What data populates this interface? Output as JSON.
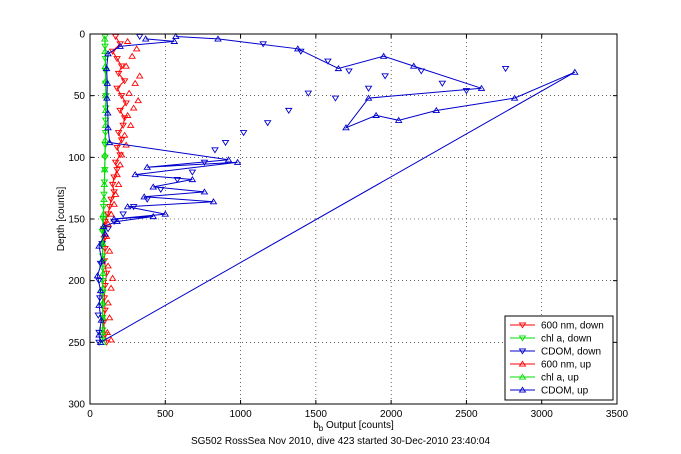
{
  "caption": "SG502 RossSea Nov 2010, dive 423 started 30-Dec-2010 23:40:04",
  "chart_data": {
    "type": "scatter",
    "title": "",
    "xlabel": "b",
    "xlabel_sub": "b",
    "xlabel_rest": " Output [counts]",
    "ylabel": "Depth [counts]",
    "xlim": [
      0,
      3500
    ],
    "ylim": [
      0,
      300
    ],
    "y_reversed": true,
    "grid": true,
    "legend_position": "bottom-right",
    "xticks": [
      0,
      500,
      1000,
      1500,
      2000,
      2500,
      3000,
      3500
    ],
    "yticks": [
      0,
      50,
      100,
      150,
      200,
      250,
      300
    ],
    "series": [
      {
        "name": "600 nm, down",
        "color": "#ff0000",
        "marker": "tri-down",
        "line": true,
        "points": [
          [
            170,
            2
          ],
          [
            200,
            8
          ],
          [
            150,
            14
          ],
          [
            180,
            20
          ],
          [
            210,
            26
          ],
          [
            190,
            32
          ],
          [
            230,
            38
          ],
          [
            180,
            44
          ],
          [
            210,
            50
          ],
          [
            240,
            56
          ],
          [
            200,
            62
          ],
          [
            230,
            68
          ],
          [
            220,
            74
          ],
          [
            190,
            80
          ],
          [
            210,
            86
          ],
          [
            180,
            92
          ],
          [
            200,
            98
          ],
          [
            170,
            104
          ],
          [
            180,
            110
          ],
          [
            160,
            116
          ],
          [
            150,
            122
          ],
          [
            160,
            128
          ],
          [
            140,
            134
          ],
          [
            130,
            140
          ],
          [
            120,
            146
          ],
          [
            100,
            152
          ],
          [
            90,
            158
          ],
          [
            95,
            166
          ],
          [
            100,
            174
          ],
          [
            95,
            184
          ],
          [
            110,
            194
          ],
          [
            100,
            204
          ],
          [
            95,
            214
          ],
          [
            100,
            224
          ],
          [
            90,
            234
          ],
          [
            100,
            244
          ],
          [
            110,
            250
          ]
        ]
      },
      {
        "name": "chl a, down",
        "color": "#00dd00",
        "marker": "tri-down",
        "line": true,
        "points": [
          [
            100,
            2
          ],
          [
            100,
            10
          ],
          [
            102,
            20
          ],
          [
            104,
            30
          ],
          [
            104,
            40
          ],
          [
            106,
            50
          ],
          [
            105,
            60
          ],
          [
            104,
            70
          ],
          [
            103,
            80
          ],
          [
            102,
            90
          ],
          [
            100,
            100
          ],
          [
            98,
            110
          ],
          [
            96,
            120
          ],
          [
            93,
            130
          ],
          [
            90,
            140
          ],
          [
            86,
            150
          ],
          [
            82,
            160
          ],
          [
            82,
            170
          ],
          [
            84,
            180
          ],
          [
            85,
            190
          ],
          [
            84,
            200
          ],
          [
            84,
            210
          ],
          [
            83,
            220
          ],
          [
            84,
            230
          ],
          [
            84,
            240
          ],
          [
            84,
            248
          ]
        ]
      },
      {
        "name": "CDOM, down",
        "color": "#0000cc",
        "marker": "tri-down",
        "line": false,
        "points": [
          [
            330,
            2
          ],
          [
            1150,
            8
          ],
          [
            1400,
            14
          ],
          [
            1580,
            22
          ],
          [
            1720,
            30
          ],
          [
            1960,
            34
          ],
          [
            2200,
            30
          ],
          [
            2340,
            40
          ],
          [
            2500,
            46
          ],
          [
            2760,
            28
          ],
          [
            1850,
            44
          ],
          [
            1630,
            52
          ],
          [
            1450,
            48
          ],
          [
            1320,
            62
          ],
          [
            1180,
            72
          ],
          [
            1020,
            80
          ],
          [
            900,
            88
          ],
          [
            830,
            94
          ],
          [
            760,
            104
          ],
          [
            680,
            112
          ],
          [
            580,
            118
          ],
          [
            470,
            126
          ],
          [
            380,
            134
          ],
          [
            290,
            140
          ],
          [
            220,
            146
          ],
          [
            160,
            152
          ],
          [
            120,
            158
          ],
          [
            80,
            170
          ],
          [
            70,
            186
          ],
          [
            60,
            200
          ],
          [
            65,
            214
          ],
          [
            55,
            228
          ],
          [
            60,
            242
          ],
          [
            60,
            250
          ]
        ]
      },
      {
        "name": "600 nm, up",
        "color": "#ff0000",
        "marker": "tri-up",
        "line": false,
        "points": [
          [
            250,
            6
          ],
          [
            310,
            12
          ],
          [
            280,
            18
          ],
          [
            240,
            26
          ],
          [
            330,
            34
          ],
          [
            300,
            40
          ],
          [
            260,
            48
          ],
          [
            320,
            54
          ],
          [
            290,
            60
          ],
          [
            250,
            66
          ],
          [
            270,
            74
          ],
          [
            230,
            82
          ],
          [
            240,
            90
          ],
          [
            210,
            98
          ],
          [
            200,
            106
          ],
          [
            180,
            114
          ],
          [
            190,
            122
          ],
          [
            170,
            130
          ],
          [
            160,
            138
          ],
          [
            140,
            146
          ],
          [
            120,
            154
          ],
          [
            110,
            164
          ],
          [
            130,
            176
          ],
          [
            120,
            188
          ],
          [
            150,
            198
          ],
          [
            140,
            206
          ],
          [
            120,
            218
          ],
          [
            130,
            230
          ],
          [
            115,
            242
          ],
          [
            140,
            248
          ]
        ]
      },
      {
        "name": "chl a, up",
        "color": "#00dd00",
        "marker": "tri-up",
        "line": true,
        "points": [
          [
            98,
            4
          ],
          [
            100,
            14
          ],
          [
            102,
            26
          ],
          [
            104,
            38
          ],
          [
            105,
            50
          ],
          [
            104,
            62
          ],
          [
            103,
            74
          ],
          [
            101,
            86
          ],
          [
            99,
            98
          ],
          [
            97,
            110
          ],
          [
            95,
            122
          ],
          [
            93,
            134
          ],
          [
            90,
            146
          ],
          [
            87,
            158
          ],
          [
            85,
            170
          ],
          [
            86,
            182
          ],
          [
            87,
            194
          ],
          [
            86,
            206
          ],
          [
            85,
            218
          ],
          [
            86,
            230
          ],
          [
            86,
            242
          ],
          [
            86,
            250
          ]
        ]
      },
      {
        "name": "CDOM, up",
        "color": "#0000cc",
        "marker": "tri-up",
        "line": true,
        "points": [
          [
            370,
            4
          ],
          [
            560,
            6
          ],
          [
            200,
            10
          ],
          [
            120,
            16
          ],
          [
            110,
            28
          ],
          [
            115,
            40
          ],
          [
            112,
            52
          ],
          [
            118,
            64
          ],
          [
            120,
            76
          ],
          [
            130,
            88
          ],
          [
            920,
            102
          ],
          [
            380,
            108
          ],
          [
            980,
            104
          ],
          [
            300,
            114
          ],
          [
            680,
            118
          ],
          [
            420,
            124
          ],
          [
            760,
            128
          ],
          [
            360,
            132
          ],
          [
            820,
            136
          ],
          [
            250,
            140
          ],
          [
            500,
            146
          ],
          [
            160,
            150
          ],
          [
            420,
            148
          ],
          [
            180,
            152
          ],
          [
            90,
            156
          ],
          [
            100,
            162
          ],
          [
            60,
            172
          ],
          [
            80,
            184
          ],
          [
            50,
            196
          ],
          [
            70,
            208
          ],
          [
            60,
            220
          ],
          [
            75,
            232
          ],
          [
            60,
            244
          ],
          [
            70,
            250
          ],
          [
            3220,
            31
          ],
          [
            2820,
            52
          ],
          [
            2300,
            62
          ],
          [
            2050,
            70
          ],
          [
            1900,
            66
          ],
          [
            1700,
            76
          ],
          [
            1850,
            52
          ],
          [
            2600,
            44
          ],
          [
            2150,
            26
          ],
          [
            1950,
            18
          ],
          [
            1650,
            28
          ],
          [
            1380,
            12
          ],
          [
            850,
            4
          ],
          [
            570,
            2
          ]
        ]
      }
    ]
  }
}
